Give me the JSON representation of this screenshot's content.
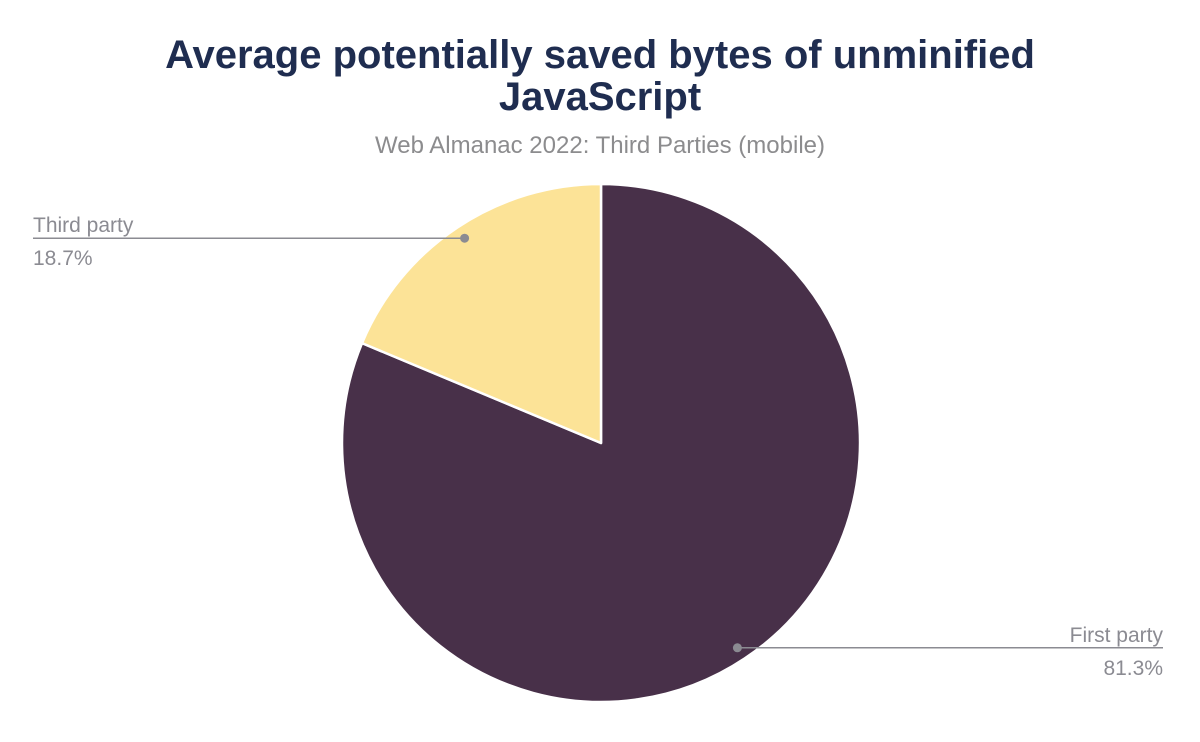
{
  "figure": {
    "title_line1": "Average potentially saved bytes of unminified",
    "title_line2": "JavaScript",
    "subtitle": "Web Almanac 2022: Third Parties (mobile)"
  },
  "chart_data": {
    "type": "pie",
    "title": "Average potentially saved bytes of unminified JavaScript",
    "subtitle": "Web Almanac 2022: Third Parties (mobile)",
    "start_angle": "top",
    "direction": "clockwise",
    "total": 100,
    "labels": "callout",
    "legend_position": "none",
    "series": [
      {
        "name": "First party",
        "value": 81.3,
        "display": "81.3%",
        "color": "#483049"
      },
      {
        "name": "Third party",
        "value": 18.7,
        "display": "18.7%",
        "color": "#fce397"
      }
    ]
  },
  "colors": {
    "title": "#1f2d50",
    "subtitle": "#8c8c8e",
    "callout_text": "#8b8b92",
    "callout_line": "#8b8b92",
    "slice_separator": "#ffffff",
    "background": "#ffffff"
  }
}
